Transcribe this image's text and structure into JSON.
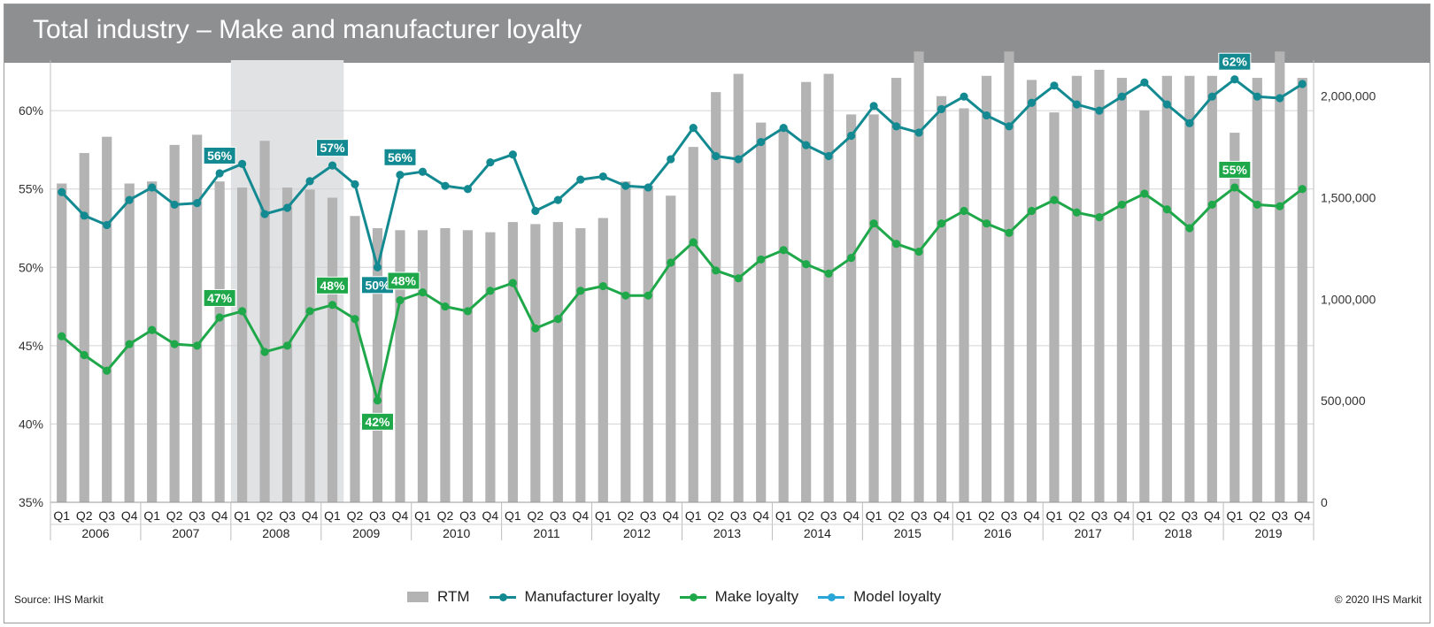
{
  "title": "Total industry – Make and manufacturer loyalty",
  "source": "Source: IHS Markit",
  "copyright": "© 2020 IHS Markit",
  "colors": {
    "rtm": "#b3b3b3",
    "manufacturer": "#138a91",
    "make": "#1fa84a",
    "model": "#2aa7d8",
    "recession": "#e1e2e4"
  },
  "legend": {
    "rtm": "RTM",
    "manufacturer": "Manufacturer loyalty",
    "make": "Make loyalty",
    "model": "Model loyalty"
  },
  "chart_data": {
    "type": "bar",
    "years": [
      "2006",
      "2007",
      "2008",
      "2009",
      "2010",
      "2011",
      "2012",
      "2013",
      "2014",
      "2015",
      "2016",
      "2017",
      "2018",
      "2019"
    ],
    "quarters": [
      "Q1",
      "Q2",
      "Q3",
      "Q4"
    ],
    "left_axis": {
      "ticks": [
        "35%",
        "40%",
        "45%",
        "50%",
        "55%",
        "60%"
      ],
      "ylim": [
        35,
        63
      ]
    },
    "right_axis": {
      "ticks": [
        "0",
        "500,000",
        "1,000,000",
        "1,500,000",
        "2,000,000"
      ],
      "ylim": [
        0,
        2160000
      ]
    },
    "shaded_period": [
      "2008 Q1",
      "2009 Q1"
    ],
    "series": [
      {
        "name": "RTM",
        "type": "bar",
        "axis": "right",
        "values": [
          1570000,
          1720000,
          1800000,
          1570000,
          1580000,
          1760000,
          1810000,
          1580000,
          1550000,
          1780000,
          1550000,
          1540000,
          1500000,
          1410000,
          1350000,
          1340000,
          1340000,
          1350000,
          1340000,
          1330000,
          1380000,
          1370000,
          1380000,
          1350000,
          1400000,
          1580000,
          1560000,
          1510000,
          1750000,
          2020000,
          2110000,
          1870000,
          1840000,
          2070000,
          2110000,
          1910000,
          1910000,
          2090000,
          2220000,
          2000000,
          1940000,
          2100000,
          2220000,
          2080000,
          1920000,
          2100000,
          2130000,
          2090000,
          1930000,
          2100000,
          2100000,
          2100000,
          1820000,
          2090000,
          2220000,
          2090000
        ]
      },
      {
        "name": "Manufacturer loyalty",
        "type": "line",
        "axis": "left",
        "values": [
          54.8,
          53.3,
          52.7,
          54.3,
          55.1,
          54.0,
          54.1,
          56.0,
          56.6,
          53.4,
          53.8,
          55.5,
          56.5,
          55.3,
          50.0,
          55.9,
          56.1,
          55.2,
          55.0,
          56.7,
          57.2,
          53.6,
          54.3,
          55.6,
          55.8,
          55.2,
          55.1,
          56.9,
          58.9,
          57.1,
          56.9,
          58.0,
          58.9,
          57.8,
          57.1,
          58.4,
          60.3,
          59.0,
          58.6,
          60.1,
          60.9,
          59.7,
          59.0,
          60.5,
          61.6,
          60.4,
          60.0,
          60.9,
          61.8,
          60.4,
          59.2,
          60.9,
          62.0,
          60.9,
          60.8,
          61.7
        ]
      },
      {
        "name": "Make loyalty",
        "type": "line",
        "axis": "left",
        "values": [
          45.6,
          44.4,
          43.4,
          45.1,
          46.0,
          45.1,
          45.0,
          46.8,
          47.2,
          44.6,
          45.0,
          47.2,
          47.6,
          46.7,
          41.5,
          47.9,
          48.4,
          47.5,
          47.2,
          48.5,
          49.0,
          46.1,
          46.7,
          48.5,
          48.8,
          48.2,
          48.2,
          50.3,
          51.6,
          49.8,
          49.3,
          50.5,
          51.1,
          50.2,
          49.6,
          50.6,
          52.8,
          51.5,
          51.0,
          52.8,
          53.6,
          52.8,
          52.2,
          53.6,
          54.3,
          53.5,
          53.2,
          54.0,
          54.7,
          53.7,
          52.5,
          54.0,
          55.1,
          54.0,
          53.9,
          55.0
        ]
      },
      {
        "name": "Model loyalty",
        "type": "line",
        "axis": "left",
        "values": []
      }
    ],
    "annotations": [
      {
        "series": "Manufacturer loyalty",
        "index": 7,
        "label": "56%"
      },
      {
        "series": "Manufacturer loyalty",
        "index": 12,
        "label": "57%"
      },
      {
        "series": "Manufacturer loyalty",
        "index": 14,
        "label": "50%"
      },
      {
        "series": "Manufacturer loyalty",
        "index": 15,
        "label": "56%"
      },
      {
        "series": "Manufacturer loyalty",
        "index": 52,
        "label": "62%"
      },
      {
        "series": "Make loyalty",
        "index": 7,
        "label": "47%"
      },
      {
        "series": "Make loyalty",
        "index": 12,
        "label": "48%"
      },
      {
        "series": "Make loyalty",
        "index": 14,
        "label": "42%"
      },
      {
        "series": "Make loyalty",
        "index": 15,
        "label": "48%"
      },
      {
        "series": "Make loyalty",
        "index": 52,
        "label": "55%"
      }
    ],
    "grid": true
  }
}
